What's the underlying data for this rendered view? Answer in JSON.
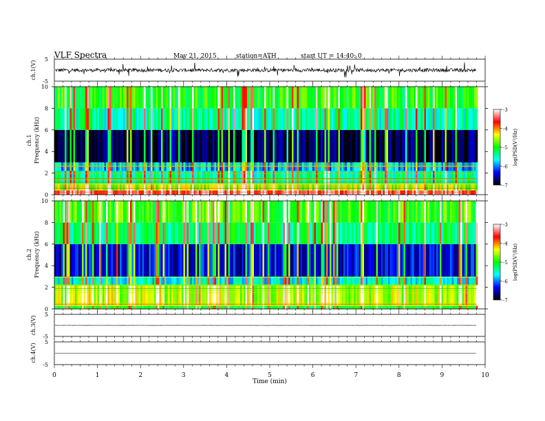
{
  "header": {
    "title": "VLF  Spectra",
    "date": "May 21, 2015",
    "station": "station=ATH",
    "start": "start  UT  =    14:40: 0"
  },
  "colorbar": {
    "label": "log(PSD(V²/Hz)",
    "ticks": [
      "-3",
      "-4",
      "-5",
      "-6",
      "-7"
    ],
    "colors": [
      "#ffffff",
      "#ff0000",
      "#ffff00",
      "#00ff00",
      "#00ffff",
      "#0000ff",
      "#000000"
    ]
  },
  "chart_data": [
    {
      "type": "line",
      "name": "ch1-waveform",
      "ylabel": "ch.1(V)",
      "ylim": [
        -5,
        5
      ],
      "yticks": [
        "5",
        "-5"
      ],
      "baseline": 0,
      "noise_amplitude": 0.8
    },
    {
      "type": "heatmap",
      "name": "ch1-spectrogram",
      "ylabel_channel": "ch.1",
      "ylabel": "Frequency  (kHz)",
      "ylim": [
        0,
        10
      ],
      "yticks": [
        "0",
        "2",
        "4",
        "6",
        "8",
        "10"
      ],
      "xlim": [
        0,
        10
      ],
      "data_end": 9.8,
      "bands": [
        {
          "from": 0,
          "to": 0.4,
          "level": -3.5
        },
        {
          "from": 0.4,
          "to": 1.0,
          "level": -4.6
        },
        {
          "from": 1.0,
          "to": 2.2,
          "level": -5.4
        },
        {
          "from": 2.2,
          "to": 3.0,
          "level": -5.9
        },
        {
          "from": 3.0,
          "to": 6.0,
          "level": -6.8
        },
        {
          "from": 6.0,
          "to": 8.0,
          "level": -5.4
        },
        {
          "from": 8.0,
          "to": 10,
          "level": -5.0
        }
      ]
    },
    {
      "type": "heatmap",
      "name": "ch2-spectrogram",
      "ylabel_channel": "ch.2",
      "ylabel": "Frequency  (kHz)",
      "ylim": [
        0,
        10
      ],
      "yticks": [
        "0",
        "2",
        "4",
        "6",
        "8",
        "10"
      ],
      "xlim": [
        0,
        10
      ],
      "data_end": 9.8,
      "bands": [
        {
          "from": 0,
          "to": 0.3,
          "level": -5.2
        },
        {
          "from": 0.3,
          "to": 2.2,
          "level": -4.5
        },
        {
          "from": 2.2,
          "to": 3.0,
          "level": -5.6
        },
        {
          "from": 3.0,
          "to": 6.0,
          "level": -6.4
        },
        {
          "from": 6.0,
          "to": 8.0,
          "level": -5.3
        },
        {
          "from": 8.0,
          "to": 10,
          "level": -4.9
        }
      ]
    },
    {
      "type": "line",
      "name": "ch3-waveform",
      "ylabel": "ch.3(V)",
      "ylim": [
        -5,
        5
      ],
      "yticks": [
        "5",
        "-5"
      ],
      "baseline": 0,
      "noise_amplitude": 0.05
    },
    {
      "type": "line",
      "name": "ch4-waveform",
      "ylabel": "ch.4(V)",
      "ylim": [
        -5,
        5
      ],
      "yticks": [
        "5",
        "-5"
      ],
      "baseline": 0,
      "noise_amplitude": 0
    }
  ],
  "xaxis": {
    "label": "Time  (min)",
    "ticks": [
      "0",
      "1",
      "2",
      "3",
      "4",
      "5",
      "6",
      "7",
      "8",
      "9",
      "10"
    ],
    "xlim": [
      0,
      10
    ]
  }
}
